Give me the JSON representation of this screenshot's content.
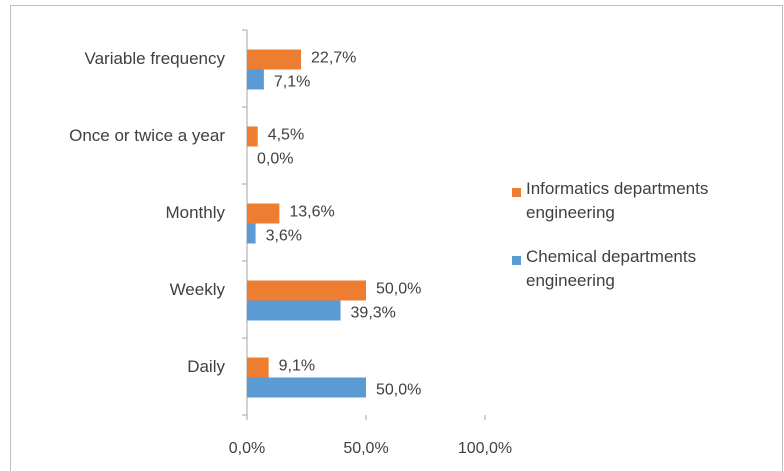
{
  "chart_data": {
    "type": "hbar",
    "categories": [
      "Variable frequency",
      "Once or twice a year",
      "Monthly",
      "Weekly",
      "Daily"
    ],
    "series": [
      {
        "name": "Informatics departments engineering",
        "color": "#ed7d31",
        "values": [
          22.7,
          4.5,
          13.6,
          50.0,
          9.1
        ],
        "value_labels": [
          "22,7%",
          "4,5%",
          "13,6%",
          "50,0%",
          "9,1%"
        ]
      },
      {
        "name": "Chemical departments engineering",
        "color": "#5b9bd5",
        "values": [
          7.1,
          0.0,
          3.6,
          39.3,
          50.0
        ],
        "value_labels": [
          "7,1%",
          "0,0%",
          "3,6%",
          "39,3%",
          "50,0%"
        ]
      }
    ],
    "xlim": [
      0,
      100
    ],
    "xticks": [
      {
        "value": 0,
        "label": "0,0%"
      },
      {
        "value": 50,
        "label": "50,0%"
      },
      {
        "value": 100,
        "label": "100,0%"
      }
    ],
    "legend": "right"
  }
}
